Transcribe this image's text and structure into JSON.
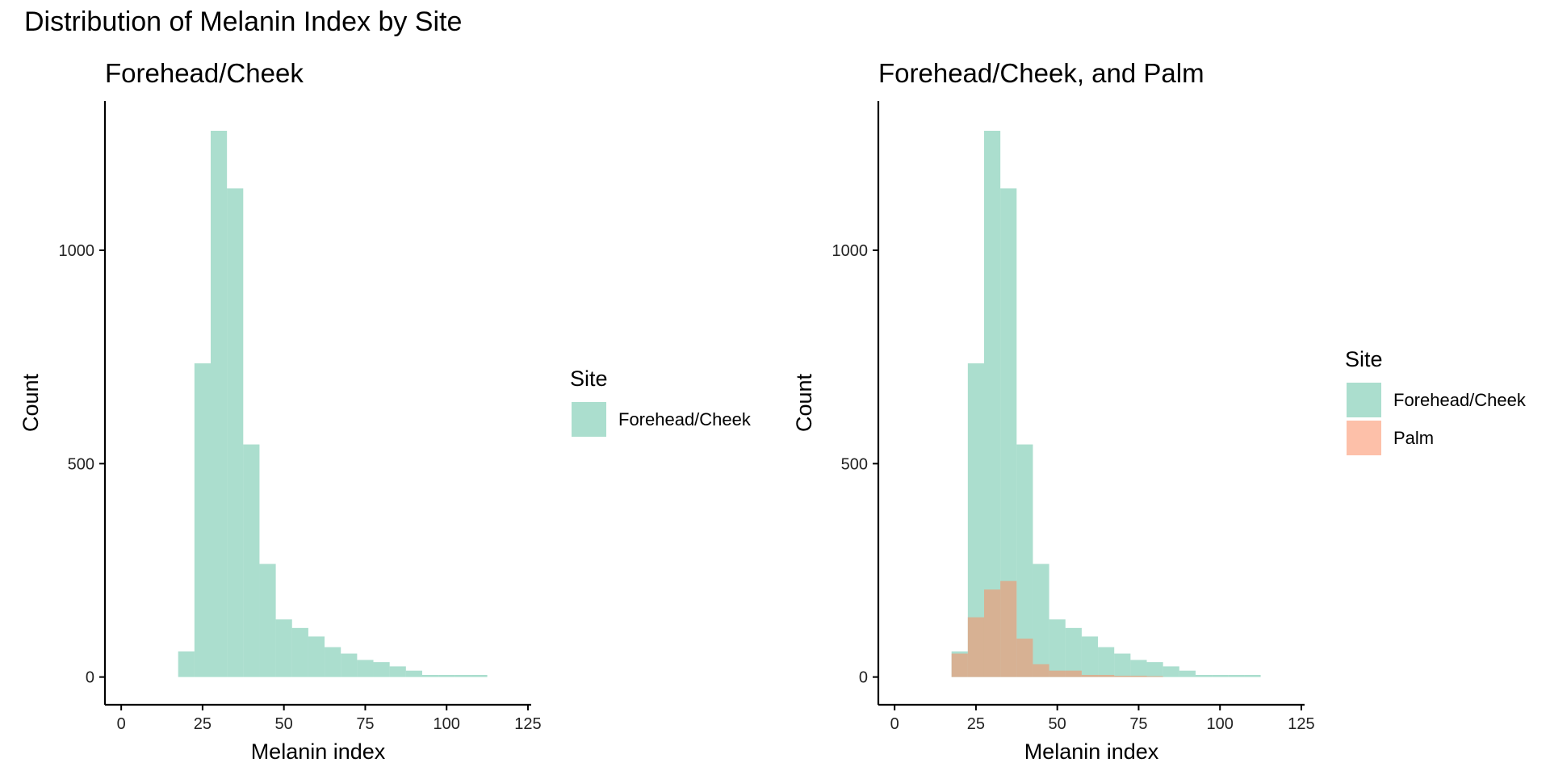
{
  "title": "Distribution of Melanin Index by Site",
  "colors": {
    "forehead": "#66C2A5",
    "palm": "#FC8D62",
    "overlap": "#D4A98E"
  },
  "chart_data": [
    {
      "type": "bar",
      "title": "Forehead/Cheek",
      "xlabel": "Melanin index",
      "ylabel": "Count",
      "xlim": [
        -5,
        126
      ],
      "ylim": [
        -65,
        1350
      ],
      "xticks": [
        0,
        25,
        50,
        75,
        100,
        125
      ],
      "yticks": [
        0,
        500,
        1000
      ],
      "bin_width": 5,
      "legend": {
        "title": "Site",
        "placement": "right"
      },
      "series": [
        {
          "name": "Forehead/Cheek",
          "color": "#66C2A5",
          "bin_starts": [
            17.5,
            22.5,
            27.5,
            32.5,
            37.5,
            42.5,
            47.5,
            52.5,
            57.5,
            62.5,
            67.5,
            72.5,
            77.5,
            82.5,
            87.5,
            92.5,
            97.5,
            102.5,
            107.5
          ],
          "values": [
            60,
            735,
            1280,
            1145,
            545,
            265,
            135,
            115,
            95,
            70,
            55,
            40,
            35,
            25,
            15,
            5,
            5,
            5,
            5
          ]
        }
      ]
    },
    {
      "type": "bar",
      "title": "Forehead/Cheek, and Palm",
      "xlabel": "Melanin index",
      "ylabel": "Count",
      "xlim": [
        -5,
        126
      ],
      "ylim": [
        -65,
        1350
      ],
      "xticks": [
        0,
        25,
        50,
        75,
        100,
        125
      ],
      "yticks": [
        0,
        500,
        1000
      ],
      "bin_width": 5,
      "legend": {
        "title": "Site",
        "placement": "right"
      },
      "series": [
        {
          "name": "Forehead/Cheek",
          "color": "#66C2A5",
          "bin_starts": [
            17.5,
            22.5,
            27.5,
            32.5,
            37.5,
            42.5,
            47.5,
            52.5,
            57.5,
            62.5,
            67.5,
            72.5,
            77.5,
            82.5,
            87.5,
            92.5,
            97.5,
            102.5,
            107.5
          ],
          "values": [
            60,
            735,
            1280,
            1145,
            545,
            265,
            135,
            115,
            95,
            70,
            55,
            40,
            35,
            25,
            15,
            5,
            5,
            5,
            5
          ]
        },
        {
          "name": "Palm",
          "color": "#FC8D62",
          "bin_starts": [
            17.5,
            22.5,
            27.5,
            32.5,
            37.5,
            42.5,
            47.5,
            52.5,
            57.5,
            62.5,
            67.5,
            72.5,
            77.5
          ],
          "values": [
            55,
            140,
            205,
            225,
            90,
            30,
            15,
            15,
            5,
            5,
            3,
            3,
            2
          ]
        }
      ]
    }
  ]
}
